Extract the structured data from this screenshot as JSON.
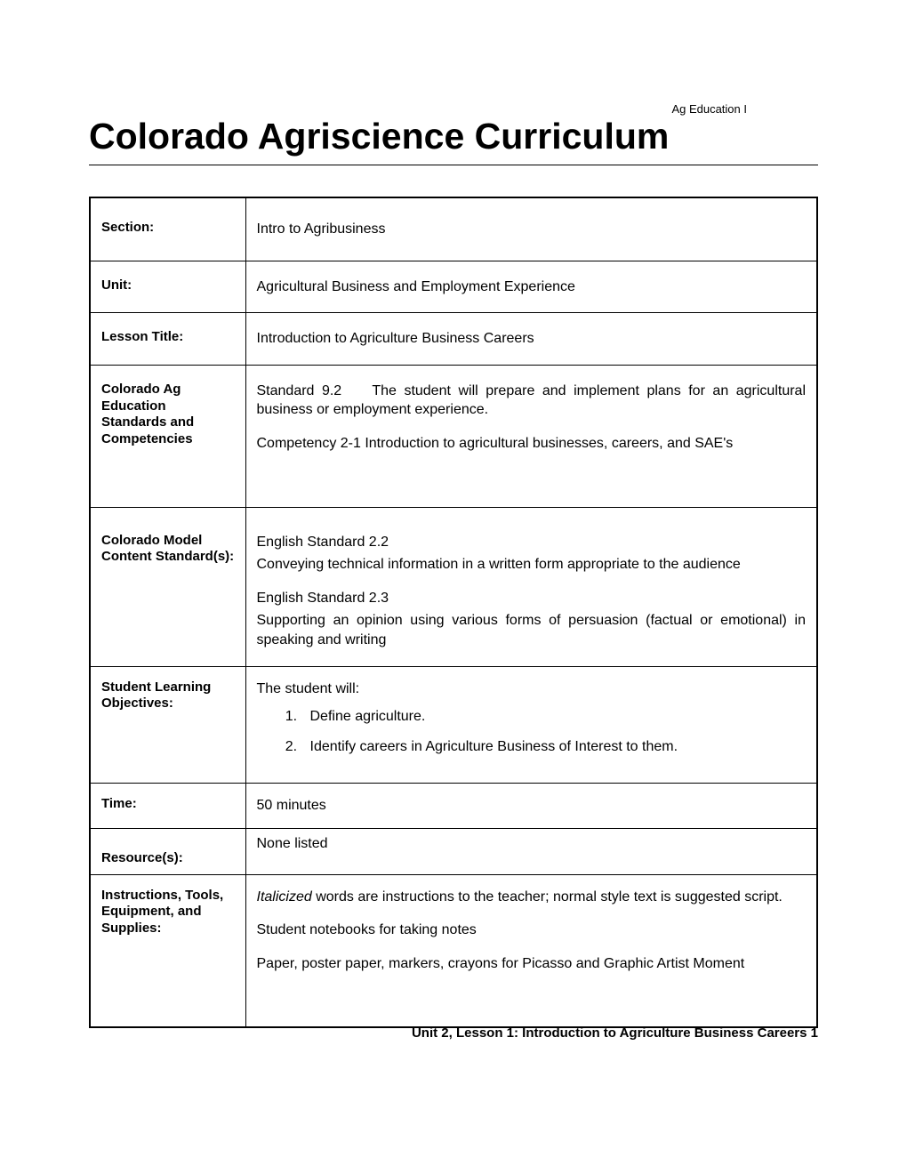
{
  "header": {
    "tag": "Ag Education I",
    "title": "Colorado Agriscience Curriculum"
  },
  "rows": {
    "section": {
      "label": "Section:",
      "value": "Intro to Agribusiness"
    },
    "unit": {
      "label": "Unit:",
      "value": "Agricultural Business and Employment Experience"
    },
    "lesson_title": {
      "label": "Lesson Title:",
      "value": "Introduction to Agriculture Business Careers"
    },
    "standards": {
      "label": "Colorado Ag Education Standards and Competencies",
      "std_num": "Standard 9.2",
      "std_text": "The student will prepare and implement plans for an agricultural business or employment experience.",
      "competency": "Competency 2-1 Introduction to agricultural businesses, careers, and SAE's"
    },
    "model": {
      "label": "Colorado Model Content Standard(s):",
      "std1_title": "English Standard 2.2",
      "std1_text": "Conveying technical information in a written form appropriate to the audience",
      "std2_title": "English Standard 2.3",
      "std2_text": "Supporting an opinion using various forms of persuasion (factual or emotional) in speaking and writing"
    },
    "objectives": {
      "label": "Student Learning Objectives:",
      "intro": "The student will:",
      "item1": "Define agriculture.",
      "item2": "Identify careers in Agriculture Business of Interest to them."
    },
    "time": {
      "label": "Time:",
      "value": "50 minutes"
    },
    "resources": {
      "label": "Resource(s):",
      "value": "None listed"
    },
    "instructions": {
      "label": "Instructions, Tools, Equipment, and Supplies:",
      "line1_italic": "Italicized",
      "line1_rest": " words are instructions to the teacher; normal style text is suggested script.",
      "line2": "Student notebooks for taking notes",
      "line3": "Paper, poster paper, markers, crayons for Picasso and Graphic Artist Moment"
    }
  },
  "footer": "Unit 2, Lesson 1:  Introduction to Agriculture Business Careers 1",
  "colors": {
    "text": "#000000",
    "background": "#ffffff",
    "border": "#000000"
  },
  "typography": {
    "title_fontsize": 41,
    "body_fontsize": 16,
    "label_fontsize": 15,
    "header_tag_fontsize": 13,
    "footer_fontsize": 15
  }
}
